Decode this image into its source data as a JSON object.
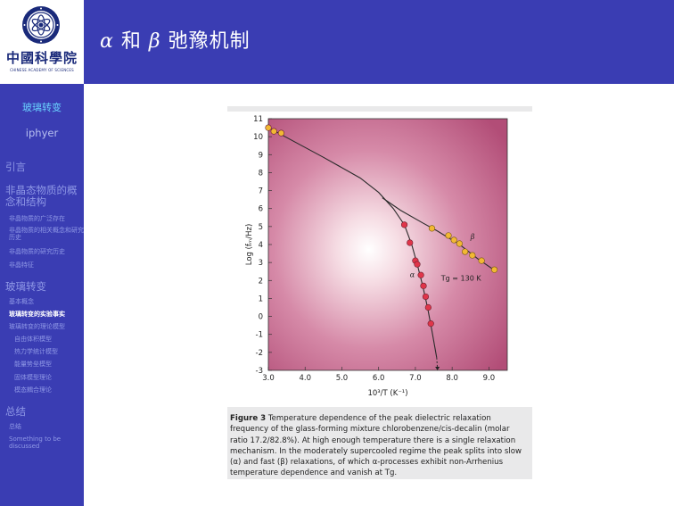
{
  "header": {
    "title_alpha": "α",
    "title_and": "和",
    "title_beta": "β",
    "title_rest": "弛豫机制"
  },
  "logo": {
    "name": "中國科學院",
    "subtitle": "CHINESE ACADEMY OF SCIENCES"
  },
  "sidebar": {
    "current": "玻璃转变",
    "author": "iphyer",
    "sections": [
      {
        "label": "引言"
      },
      {
        "label": "非晶态物质的概念和结构",
        "items": [
          "非晶物质的广泛存在",
          "非晶物质的相关概念和研究历史",
          "非晶物质的研究历史",
          "非晶特征"
        ]
      },
      {
        "label": "玻璃转变",
        "items": [
          "基本概念",
          "玻璃转变的实验事实",
          "玻璃转变的理论模型"
        ],
        "subitems": [
          "自由体积模型",
          "热力学统计模型",
          "能量势垒模型",
          "固体模型理论",
          "模态耦合理论"
        ]
      },
      {
        "label": "总结",
        "items": [
          "总结",
          "Something to be discussed"
        ]
      }
    ]
  },
  "colors": {
    "bar": "#3a3db3",
    "nav_text": "#8f98e6",
    "current_text": "#69d3ff",
    "plot_bg_center": "#ffffff",
    "plot_bg_edge": "#b24d77",
    "alpha_points": "#e0354a",
    "beta_points": "#f2b833"
  },
  "figure": {
    "caption_label": "Figure 3",
    "caption_text": "Temperature dependence of the peak dielectric relaxation frequency of the glass-forming mixture chlorobenzene/cis-decalin (molar ratio 17.2/82.8%). At high enough temperature there is a single relaxation mechanism. In the moderately supercooled regime the peak splits into slow (α) and fast (β) relaxations, of which α-processes exhibit non-Arrhenius temperature dependence and vanish at Tg."
  },
  "chart_data": {
    "type": "scatter",
    "xlabel": "10³/T (K⁻¹)",
    "ylabel": "Log (fₘ/Hz)",
    "xlim": [
      3.0,
      9.5
    ],
    "ylim": [
      -3,
      11
    ],
    "xticks": [
      "3.0",
      "4.0",
      "5.0",
      "6.0",
      "7.0",
      "8.0",
      "9.0"
    ],
    "yticks": [
      "-3",
      "-2",
      "-1",
      "0",
      "1",
      "2",
      "3",
      "4",
      "5",
      "6",
      "7",
      "8",
      "9",
      "10",
      "11"
    ],
    "annotations": {
      "alpha": "α",
      "beta": "β",
      "tg": "Tg = 130 K"
    },
    "series": [
      {
        "name": "α",
        "x": [
          3.0,
          3.15,
          3.35,
          6.7,
          6.85,
          7.0,
          7.05,
          7.15,
          7.22,
          7.28,
          7.35,
          7.42
        ],
        "y": [
          10.5,
          10.3,
          10.2,
          5.1,
          4.1,
          3.1,
          2.9,
          2.3,
          1.7,
          1.1,
          0.5,
          -0.4
        ]
      },
      {
        "name": "β",
        "x": [
          7.45,
          7.9,
          8.05,
          8.2,
          8.35,
          8.55,
          8.8,
          9.15
        ],
        "y": [
          4.9,
          4.5,
          4.25,
          4.05,
          3.6,
          3.4,
          3.1,
          2.6
        ]
      }
    ],
    "grid": false
  }
}
